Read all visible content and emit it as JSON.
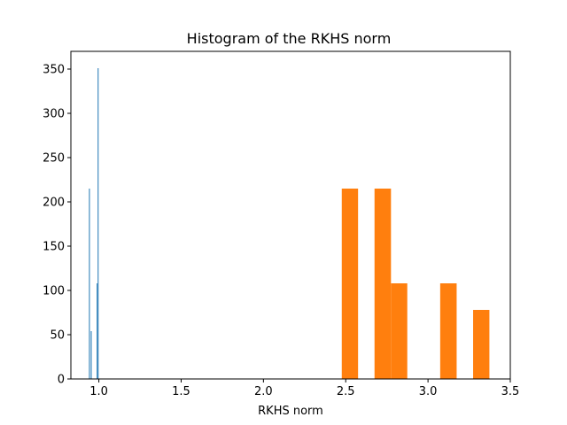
{
  "chart_data": {
    "type": "bar",
    "title": "Histogram of the RKHS norm",
    "xlabel": "RKHS norm",
    "ylabel": "",
    "xlim": [
      0.83,
      3.5
    ],
    "ylim": [
      0,
      370
    ],
    "xticks": [
      1.0,
      1.5,
      2.0,
      2.5,
      3.0,
      3.5
    ],
    "xtick_labels": [
      "1.0",
      "1.5",
      "2.0",
      "2.5",
      "3.0",
      "3.5"
    ],
    "yticks": [
      0,
      50,
      100,
      150,
      200,
      250,
      300,
      350
    ],
    "ytick_labels": [
      "0",
      "50",
      "100",
      "150",
      "200",
      "250",
      "300",
      "350"
    ],
    "grid": false,
    "series": [
      {
        "color": "#1f77b4",
        "bins": [
          {
            "x0": 0.94,
            "x1": 0.944,
            "count": 215
          },
          {
            "x0": 0.951,
            "x1": 0.955,
            "count": 54
          },
          {
            "x0": 0.987,
            "x1": 0.991,
            "count": 108
          },
          {
            "x0": 0.993,
            "x1": 0.997,
            "count": 351
          }
        ]
      },
      {
        "color": "#ff7f0e",
        "bins": [
          {
            "x0": 2.476,
            "x1": 2.575,
            "count": 215
          },
          {
            "x0": 2.675,
            "x1": 2.775,
            "count": 215
          },
          {
            "x0": 2.775,
            "x1": 2.874,
            "count": 108
          },
          {
            "x0": 3.074,
            "x1": 3.174,
            "count": 108
          },
          {
            "x0": 3.274,
            "x1": 3.373,
            "count": 78
          }
        ]
      }
    ]
  }
}
